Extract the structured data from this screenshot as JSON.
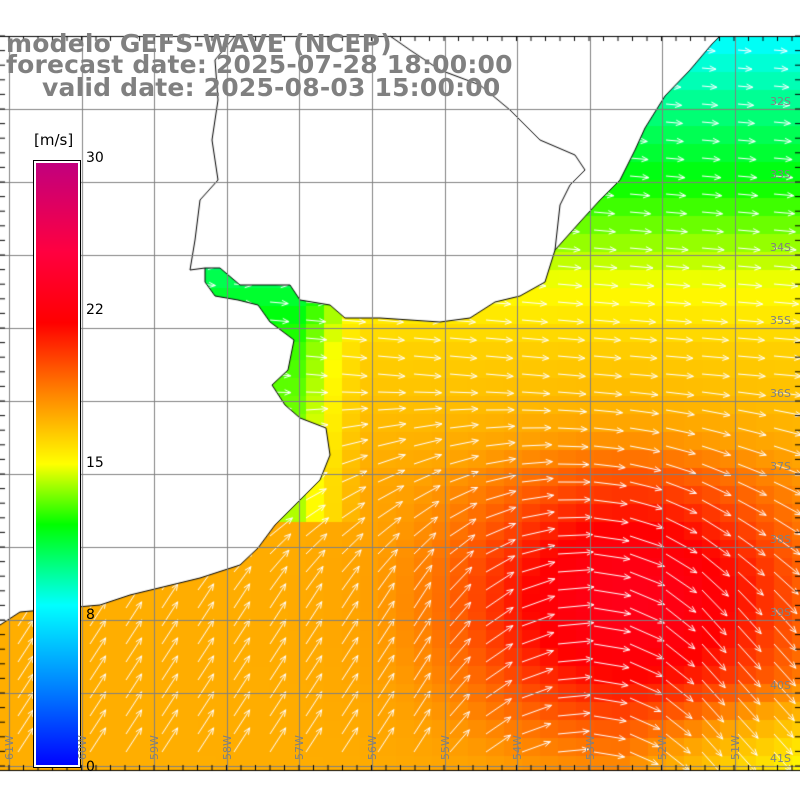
{
  "title": {
    "line1": "modelo GEFS-WAVE (NCEP)",
    "line2": "forecast date: 2025-07-28 18:00:00",
    "line3": "valid date: 2025-08-03 15:00:00"
  },
  "colorbar": {
    "unit": "[m/s]",
    "labels": [
      "30",
      "22",
      "15",
      "8",
      "0"
    ],
    "colors": [
      "#0000ff",
      "#00ffff",
      "#00ff00",
      "#ffff00",
      "#ff0000",
      "#c0007f"
    ]
  },
  "grid": {
    "lat_labels": [
      "32S",
      "33S",
      "34S",
      "35S",
      "36S",
      "37S",
      "38S",
      "39S",
      "40S",
      "41S"
    ],
    "lon_labels": [
      "61W",
      "60W",
      "59W",
      "58W",
      "57W",
      "56W",
      "55W",
      "54W",
      "53W",
      "52W",
      "51W"
    ]
  },
  "colors": {
    "grid": "#808080",
    "coast": "#000000",
    "arrow": "#ffffff",
    "title": "#808080"
  }
}
